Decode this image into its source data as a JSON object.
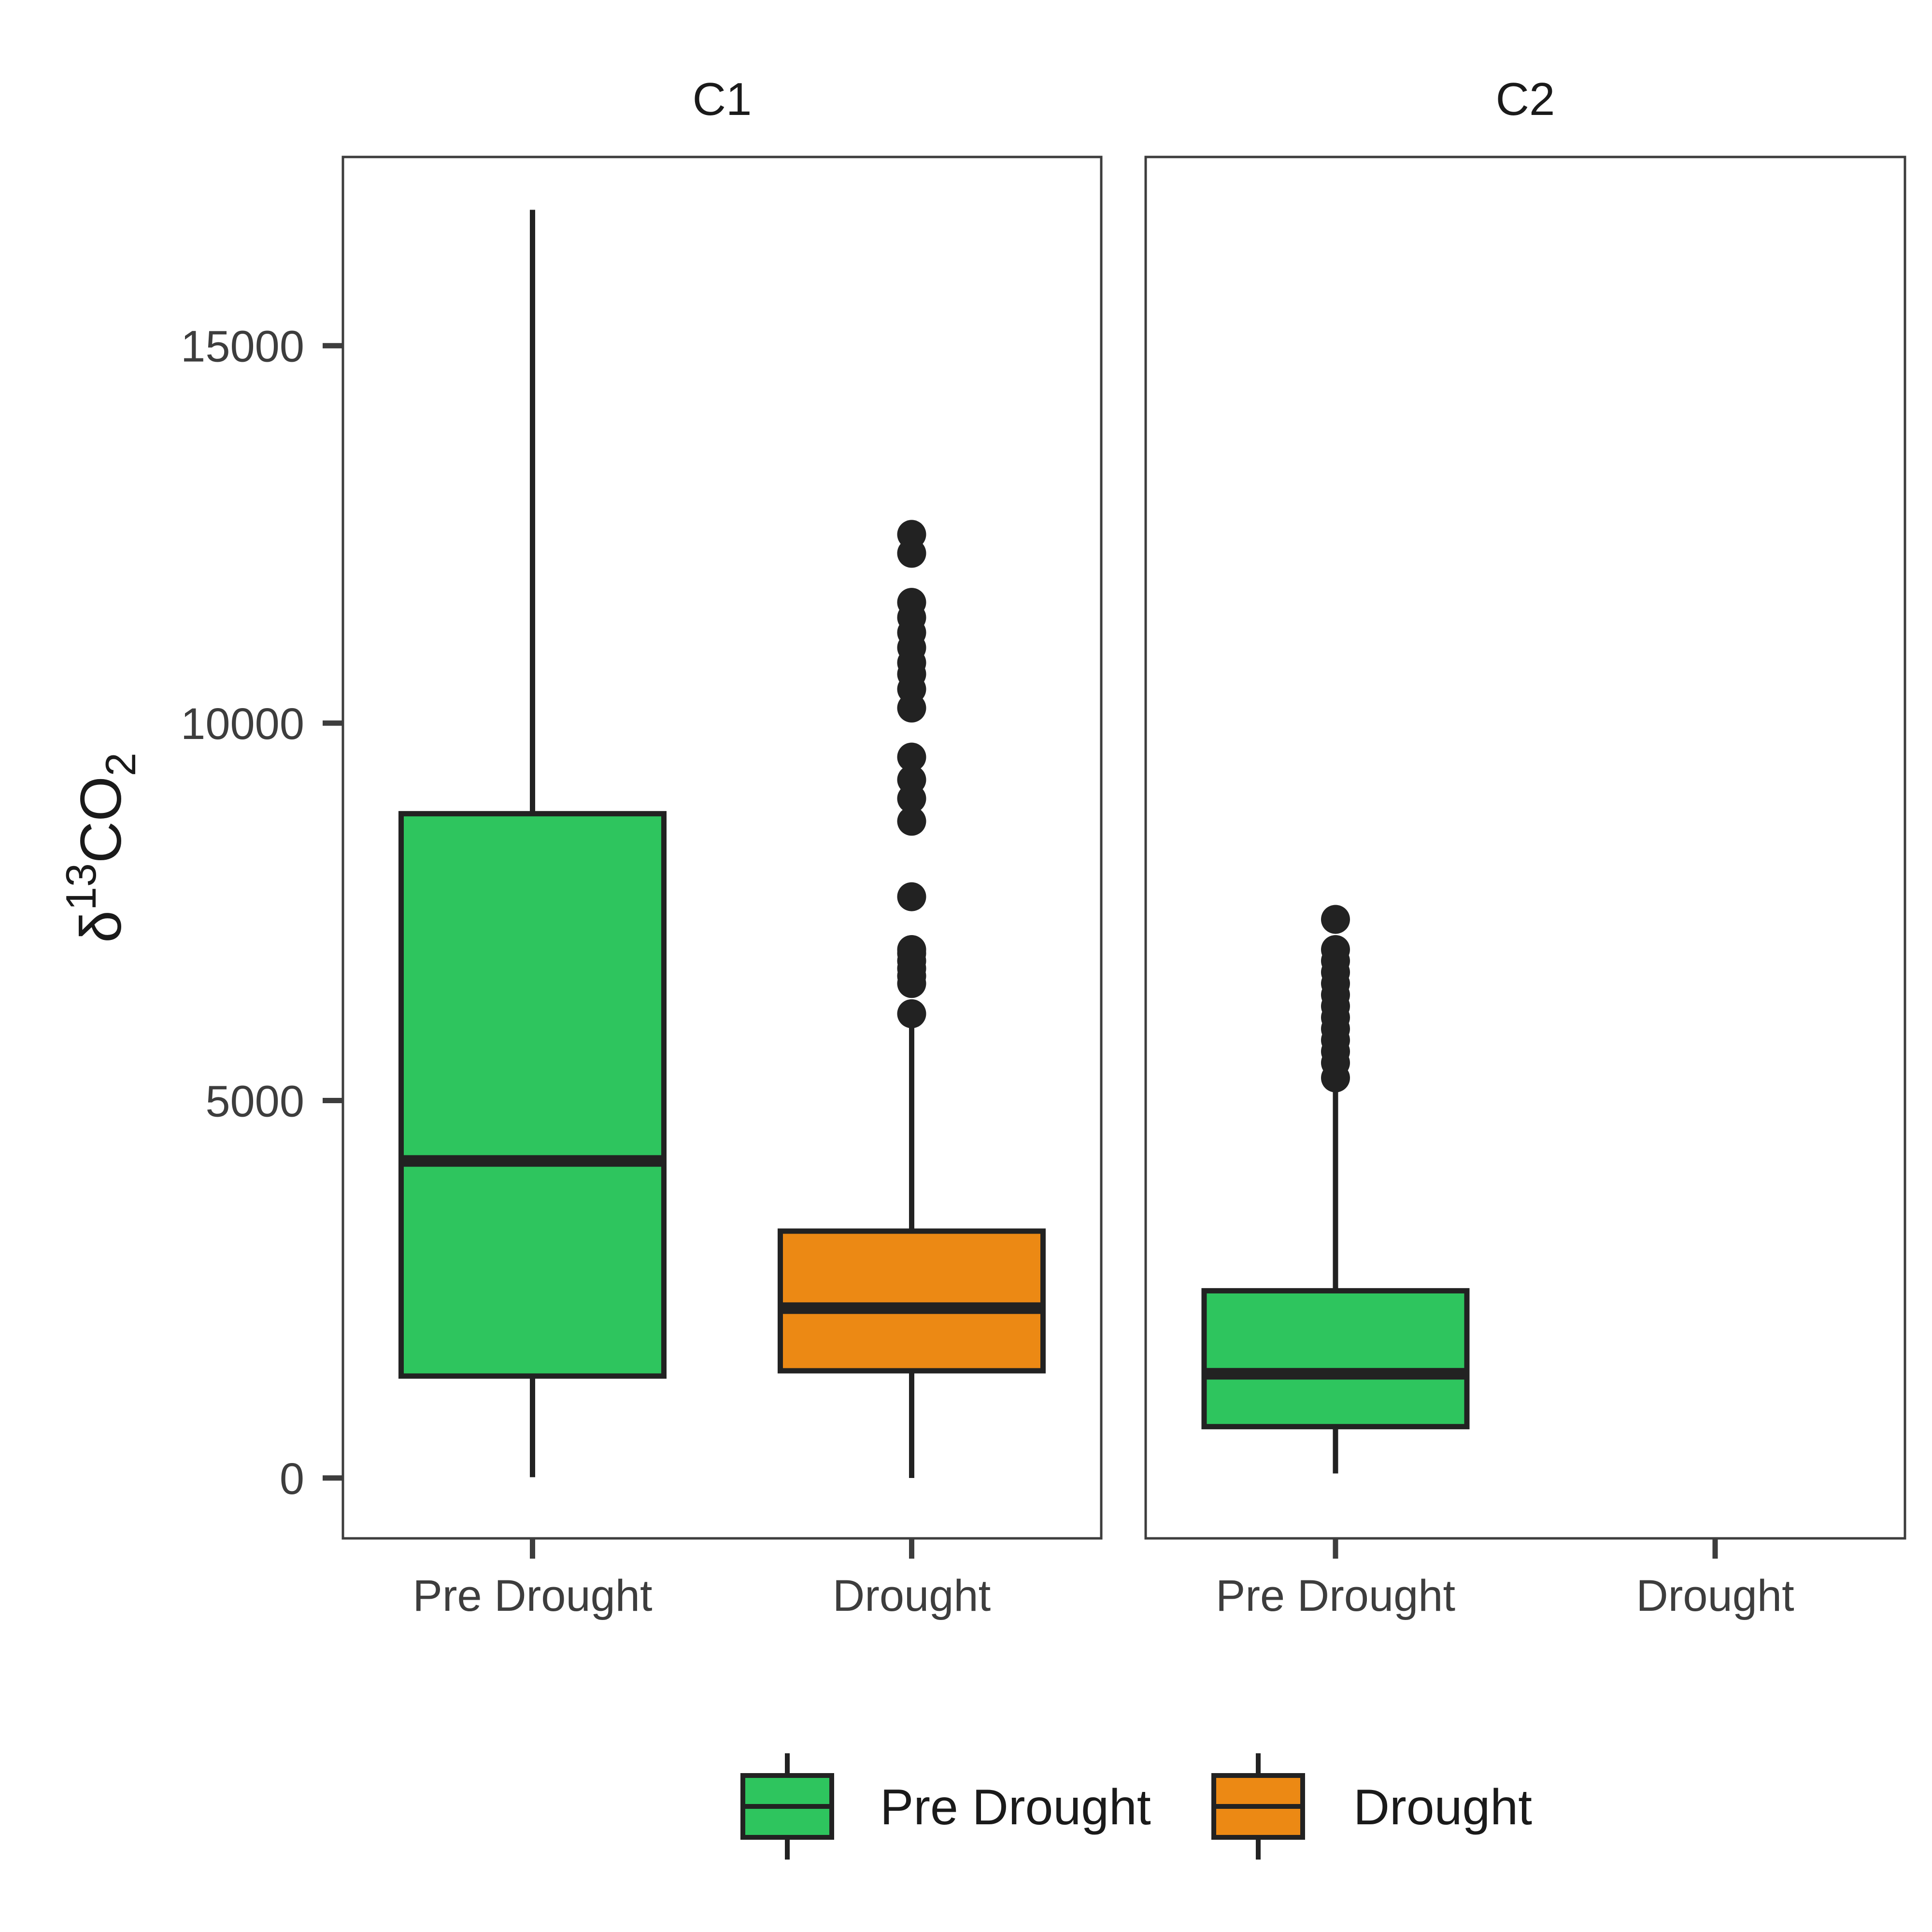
{
  "chart_data": {
    "type": "box",
    "ylabel": {
      "prefix": "δ",
      "superscript": "13",
      "base": "CO",
      "subscript": "2"
    },
    "y_ticks": [
      0,
      5000,
      10000,
      15000
    ],
    "ylim": [
      -800,
      17500
    ],
    "categories": [
      "Pre Drought",
      "Drought"
    ],
    "panels": [
      {
        "name": "C1",
        "boxes": [
          {
            "category": "Pre Drought",
            "color": "#2ec55e",
            "min": 10,
            "q1": 1350,
            "median": 4200,
            "q3": 8800,
            "max": 16800,
            "outliers": []
          },
          {
            "category": "Drought",
            "color": "#ec8914",
            "min": 0,
            "q1": 1420,
            "median": 2250,
            "q3": 3270,
            "max": 6000,
            "outliers": [
              6150,
              6550,
              6650,
              6750,
              6850,
              6950,
              7000,
              7700,
              8700,
              9000,
              9250,
              9550,
              10200,
              10450,
              10650,
              10800,
              11000,
              11200,
              11400,
              11600,
              12250,
              12500
            ]
          }
        ]
      },
      {
        "name": "C2",
        "boxes": [
          {
            "category": "Pre Drought",
            "color": "#2ec55e",
            "min": 60,
            "q1": 680,
            "median": 1380,
            "q3": 2480,
            "max": 5200,
            "outliers": [
              5300,
              5500,
              5650,
              5800,
              5950,
              6100,
              6250,
              6400,
              6550,
              6700,
              6850,
              7000,
              7400
            ]
          }
        ]
      }
    ],
    "legend": {
      "position": "bottom",
      "entries": [
        {
          "label": "Pre Drought",
          "color": "#2ec55e"
        },
        {
          "label": "Drought",
          "color": "#ec8914"
        }
      ]
    }
  }
}
